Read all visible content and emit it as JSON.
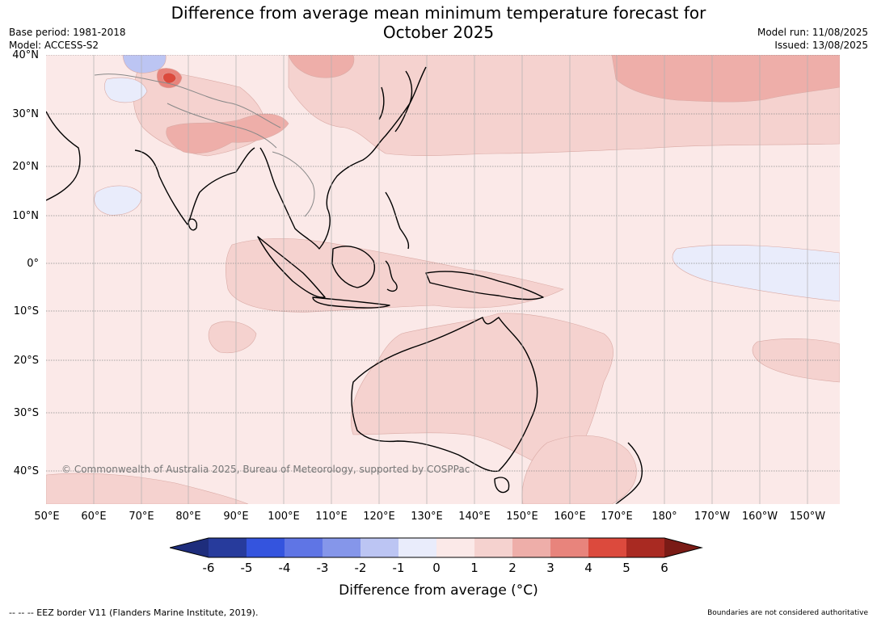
{
  "header": {
    "title_line1": "Difference from average mean minimum temperature forecast for",
    "title_line2": "October 2025",
    "base_period": "Base period: 1981-2018",
    "model": "Model: ACCESS-S2",
    "model_run": "Model run: 11/08/2025",
    "issued": "Issued: 13/08/2025"
  },
  "map": {
    "latitude_labels": [
      "40°N",
      "30°N",
      "20°N",
      "10°N",
      "0°",
      "10°S",
      "20°S",
      "30°S",
      "40°S"
    ],
    "longitude_labels": [
      "50°E",
      "60°E",
      "70°E",
      "80°E",
      "90°E",
      "100°E",
      "110°E",
      "120°E",
      "130°E",
      "140°E",
      "150°E",
      "160°E",
      "170°E",
      "180°",
      "170°W",
      "160°W",
      "150°W"
    ],
    "copyright": "© Commonwealth of Australia 2025, Bureau of Meteorology, supported by COSPPac",
    "background_color": "#fbe9e8"
  },
  "legend": {
    "ticks": [
      "-6",
      "-5",
      "-4",
      "-3",
      "-2",
      "-1",
      "0",
      "1",
      "2",
      "3",
      "4",
      "5",
      "6"
    ],
    "colors": [
      "#273b9c",
      "#3454de",
      "#5f75e5",
      "#8596ea",
      "#bcc5f3",
      "#e9ecfb",
      "#fbe9e8",
      "#f5d2cf",
      "#eeaea9",
      "#e8847c",
      "#dc4a3d",
      "#a92a22"
    ],
    "under_color": "#1e2d7c",
    "over_color": "#7a1b16",
    "title": "Difference from average (°C)"
  },
  "footer": {
    "eez_note": "-- -- -- EEZ border V11 (Flanders Marine Institute, 2019).",
    "boundary_note": "Boundaries are not considered authoritative"
  }
}
